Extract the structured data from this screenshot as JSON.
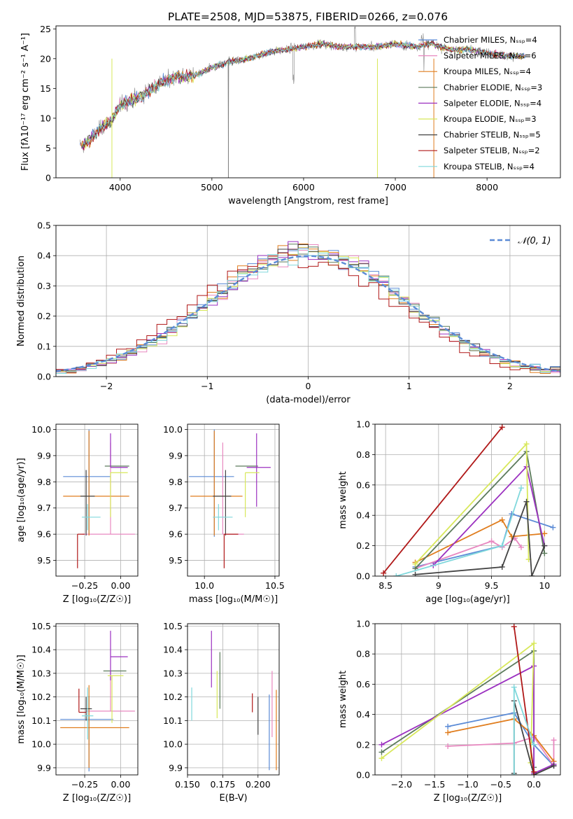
{
  "chart_data": [
    {
      "id": "spectrum",
      "type": "line",
      "title": "PLATE=2508, MJD=53875, FIBERID=0266, z=0.076",
      "xlabel": "wavelength [Angstrom, rest frame]",
      "ylabel": "Flux [fλ10⁻¹⁷ erg cm⁻² s⁻¹ A⁻¹]",
      "xlim": [
        3300,
        8800
      ],
      "ylim": [
        0,
        25.5
      ],
      "xticks": [
        4000,
        5000,
        6000,
        7000,
        8000
      ],
      "yticks": [
        0,
        5,
        10,
        15,
        20,
        25
      ],
      "legend_position": "upper-right",
      "series": [
        {
          "name": "Chabrier MILES, Nₛₛₚ=4",
          "color": "#5b8bd6"
        },
        {
          "name": "Salpeter MILES, Nₛₛₚ=6",
          "color": "#e888c0"
        },
        {
          "name": "Kroupa MILES, Nₛₛₚ=4",
          "color": "#e07d1e"
        },
        {
          "name": "Chabrier ELODIE, Nₛₛₚ=3",
          "color": "#5b7a5b"
        },
        {
          "name": "Salpeter ELODIE, Nₛₛₚ=4",
          "color": "#9b30c0"
        },
        {
          "name": "Kroupa ELODIE, Nₛₛₚ=3",
          "color": "#d8e85a"
        },
        {
          "name": "Chabrier STELIB, Nₛₛₚ=5",
          "color": "#444444"
        },
        {
          "name": "Salpeter STELIB, Nₛₛₚ=2",
          "color": "#b01818"
        },
        {
          "name": "Kroupa STELIB, Nₛₛₚ=4",
          "color": "#80d8dc"
        }
      ],
      "data_color": "#808080",
      "continuum": {
        "x": [
          3600,
          3700,
          3800,
          3900,
          4000,
          4200,
          4400,
          4600,
          4800,
          5000,
          5200,
          5400,
          5600,
          5800,
          6000,
          6200,
          6400,
          6600,
          6800,
          7000,
          7200,
          7400,
          7600,
          7800,
          8000,
          8200,
          8400
        ],
        "y": [
          5.5,
          6.8,
          8.5,
          9.5,
          12.2,
          13.5,
          15.5,
          17.0,
          17.0,
          18.5,
          19.5,
          20.0,
          21.0,
          21.5,
          22.0,
          22.5,
          22.0,
          22.0,
          22.0,
          22.5,
          22.0,
          22.5,
          21.5,
          21.5,
          21.0,
          20.5,
          20.5
        ]
      }
    },
    {
      "id": "residuals",
      "type": "step",
      "xlabel": "(data-model)/error",
      "ylabel": "Normed distribution",
      "xlim": [
        -2.5,
        2.5
      ],
      "ylim": [
        0,
        0.5
      ],
      "xticks": [
        -2,
        -1,
        0,
        1,
        2
      ],
      "yticks": [
        0.0,
        0.1,
        0.2,
        0.3,
        0.4,
        0.5
      ],
      "grid": true,
      "legend_label": "𝒩(0, 1)",
      "legend_position": "upper-right",
      "gaussian_color": "#5b8bd6",
      "bin_width": 0.1
    },
    {
      "id": "age-vs-z",
      "type": "scatter",
      "xlabel": "Z [log₁₀(Z/Z☉)]",
      "ylabel": "age  [log₁₀(age/yr)]",
      "xlim": [
        -0.45,
        0.12
      ],
      "ylim": [
        9.44,
        10.02
      ],
      "xticks": [
        -0.25,
        0.0
      ],
      "xticklabels": [
        "−0.25",
        "0.00"
      ],
      "yticks": [
        9.5,
        9.6,
        9.7,
        9.8,
        9.9,
        10.0
      ],
      "grid": true,
      "points": [
        {
          "x": -0.22,
          "y": 9.82,
          "xerr": [
            0.18,
            0.15
          ],
          "yerr": [
            0.22,
            0.18
          ],
          "color": "#5b8bd6"
        },
        {
          "x": -0.07,
          "y": 9.6,
          "xerr": [
            0.2,
            0.17
          ],
          "yerr": [
            0.0,
            0.35
          ],
          "color": "#e888c0"
        },
        {
          "x": -0.22,
          "y": 9.745,
          "xerr": [
            0.18,
            0.28
          ],
          "yerr": [
            0.15,
            0.25
          ],
          "color": "#e07d1e"
        },
        {
          "x": -0.03,
          "y": 9.86,
          "xerr": [
            0.08,
            0.09
          ],
          "yerr": [
            0.0,
            0.0
          ],
          "color": "#5b7a5b"
        },
        {
          "x": -0.07,
          "y": 9.855,
          "xerr": [
            0.0,
            0.12
          ],
          "yerr": [
            0.0,
            0.13
          ],
          "color": "#9b30c0"
        },
        {
          "x": -0.07,
          "y": 9.835,
          "xerr": [
            0.0,
            0.12
          ],
          "yerr": [
            0.17,
            0.0
          ],
          "color": "#d8e85a"
        },
        {
          "x": -0.24,
          "y": 9.745,
          "xerr": [
            0.04,
            0.06
          ],
          "yerr": [
            0.15,
            0.1
          ],
          "color": "#444444"
        },
        {
          "x": -0.3,
          "y": 9.6,
          "xerr": [
            0.0,
            0.05
          ],
          "yerr": [
            0.13,
            0.0
          ],
          "color": "#b01818"
        },
        {
          "x": -0.23,
          "y": 9.665,
          "xerr": [
            0.04,
            0.09
          ],
          "yerr": [
            0.05,
            0.05
          ],
          "color": "#80d8dc"
        }
      ]
    },
    {
      "id": "age-vs-mass",
      "type": "scatter",
      "xlabel": "mass [log₁₀(M/M☉)]",
      "ylabel": "",
      "xlim": [
        9.88,
        10.53
      ],
      "ylim": [
        9.44,
        10.02
      ],
      "xticks": [
        10.0,
        10.5
      ],
      "xticklabels": [
        "10.0",
        "10.5"
      ],
      "yticks": [
        9.5,
        9.6,
        9.7,
        9.8,
        9.9,
        10.0
      ],
      "grid": true,
      "points": [
        {
          "x": 10.07,
          "y": 9.82,
          "xerr": [
            0.18,
            0.14
          ],
          "yerr": [
            0.23,
            0.18
          ],
          "color": "#5b8bd6"
        },
        {
          "x": 10.13,
          "y": 9.6,
          "xerr": [
            0.0,
            0.15
          ],
          "yerr": [
            0.0,
            0.35
          ],
          "color": "#e888c0"
        },
        {
          "x": 10.07,
          "y": 9.745,
          "xerr": [
            0.17,
            0.2
          ],
          "yerr": [
            0.15,
            0.25
          ],
          "color": "#e07d1e"
        },
        {
          "x": 10.3,
          "y": 9.86,
          "xerr": [
            0.08,
            0.08
          ],
          "yerr": [
            0.0,
            0.0
          ],
          "color": "#5b7a5b"
        },
        {
          "x": 10.37,
          "y": 9.855,
          "xerr": [
            0.07,
            0.1
          ],
          "yerr": [
            0.15,
            0.13
          ],
          "color": "#9b30c0"
        },
        {
          "x": 10.29,
          "y": 9.835,
          "xerr": [
            0.0,
            0.1
          ],
          "yerr": [
            0.17,
            0.0
          ],
          "color": "#d8e85a"
        },
        {
          "x": 10.15,
          "y": 9.745,
          "xerr": [
            0.09,
            0.04
          ],
          "yerr": [
            0.15,
            0.1
          ],
          "color": "#444444"
        },
        {
          "x": 10.14,
          "y": 9.6,
          "xerr": [
            0.0,
            0.1
          ],
          "yerr": [
            0.13,
            0.0
          ],
          "color": "#b01818"
        },
        {
          "x": 10.1,
          "y": 9.665,
          "xerr": [
            0.04,
            0.1
          ],
          "yerr": [
            0.05,
            0.05
          ],
          "color": "#80d8dc"
        }
      ]
    },
    {
      "id": "mass-weight-vs-age",
      "type": "line",
      "xlabel": "age  [log₁₀(age/yr)]",
      "ylabel": "mass weight",
      "xlim": [
        8.4,
        10.15
      ],
      "ylim": [
        0,
        1.0
      ],
      "xticks": [
        8.5,
        9.0,
        9.5,
        10.0
      ],
      "yticks": [
        0.0,
        0.2,
        0.4,
        0.6,
        0.8,
        1.0
      ],
      "grid": true,
      "series": [
        {
          "color": "#5b8bd6",
          "x": [
            8.78,
            9.6,
            9.69,
            10.08
          ],
          "y": [
            0.06,
            0.2,
            0.41,
            0.32
          ]
        },
        {
          "color": "#e888c0",
          "x": [
            8.78,
            9.5,
            9.6,
            9.72,
            9.78
          ],
          "y": [
            0.05,
            0.23,
            0.19,
            0.25,
            0.19
          ]
        },
        {
          "color": "#e07d1e",
          "x": [
            8.78,
            9.6,
            9.69,
            10.0
          ],
          "y": [
            0.09,
            0.37,
            0.26,
            0.28
          ]
        },
        {
          "color": "#5b7a5b",
          "x": [
            8.78,
            9.83,
            10.0
          ],
          "y": [
            0.05,
            0.82,
            0.15
          ]
        },
        {
          "color": "#9b30c0",
          "x": [
            8.95,
            9.83,
            10.0
          ],
          "y": [
            0.07,
            0.72,
            0.2
          ]
        },
        {
          "color": "#d8e85a",
          "x": [
            8.78,
            9.83,
            9.85
          ],
          "y": [
            0.08,
            0.87,
            0.11
          ]
        },
        {
          "color": "#444444",
          "x": [
            8.78,
            9.6,
            9.83,
            9.88,
            10.0
          ],
          "y": [
            0.01,
            0.06,
            0.49,
            0.0,
            0.2
          ]
        },
        {
          "color": "#b01818",
          "x": [
            8.48,
            9.6
          ],
          "y": [
            0.02,
            0.98
          ]
        },
        {
          "color": "#80d8dc",
          "x": [
            8.6,
            9.6,
            9.78
          ],
          "y": [
            0.0,
            0.2,
            0.58
          ]
        }
      ]
    },
    {
      "id": "mass-vs-z",
      "type": "scatter",
      "xlabel": "Z [log₁₀(Z/Z☉)]",
      "ylabel": "mass [log₁₀(M/M☉)]",
      "xlim": [
        -0.45,
        0.12
      ],
      "ylim": [
        9.87,
        10.51
      ],
      "xticks": [
        -0.25,
        0.0
      ],
      "xticklabels": [
        "−0.25",
        "0.00"
      ],
      "yticks": [
        9.9,
        10.0,
        10.1,
        10.2,
        10.3,
        10.4,
        10.5
      ],
      "grid": true,
      "points": [
        {
          "x": -0.22,
          "y": 10.105,
          "xerr": [
            0.2,
            0.17
          ],
          "yerr": [
            0.22,
            0.1
          ],
          "color": "#5b8bd6"
        },
        {
          "x": -0.07,
          "y": 10.14,
          "xerr": [
            0.17,
            0.17
          ],
          "yerr": [
            0.0,
            0.17
          ],
          "color": "#e888c0"
        },
        {
          "x": -0.22,
          "y": 10.07,
          "xerr": [
            0.2,
            0.28
          ],
          "yerr": [
            0.17,
            0.18
          ],
          "color": "#e07d1e"
        },
        {
          "x": -0.04,
          "y": 10.31,
          "xerr": [
            0.08,
            0.08
          ],
          "yerr": [
            0.0,
            0.0
          ],
          "color": "#5b7a5b"
        },
        {
          "x": -0.07,
          "y": 10.37,
          "xerr": [
            0.0,
            0.12
          ],
          "yerr": [
            0.1,
            0.11
          ],
          "color": "#9b30c0"
        },
        {
          "x": -0.06,
          "y": 10.29,
          "xerr": [
            0.03,
            0.08
          ],
          "yerr": [
            0.2,
            0.0
          ],
          "color": "#d8e85a"
        },
        {
          "x": -0.24,
          "y": 10.15,
          "xerr": [
            0.04,
            0.04
          ],
          "yerr": [
            0.05,
            0.05
          ],
          "color": "#444444"
        },
        {
          "x": -0.29,
          "y": 10.135,
          "xerr": [
            0.0,
            0.05
          ],
          "yerr": [
            0.0,
            0.1
          ],
          "color": "#b01818"
        },
        {
          "x": -0.23,
          "y": 10.12,
          "xerr": [
            0.04,
            0.04
          ],
          "yerr": [
            0.1,
            0.12
          ],
          "color": "#80d8dc"
        }
      ]
    },
    {
      "id": "mass-vs-ebv",
      "type": "errorbar",
      "xlabel": "E(B-V)",
      "ylabel": "",
      "xlim": [
        0.15,
        0.215
      ],
      "ylim": [
        9.87,
        10.51
      ],
      "xticks": [
        0.15,
        0.175,
        0.2
      ],
      "xticklabels": [
        "0.150",
        "0.175",
        "0.200"
      ],
      "yticks": [
        9.9,
        10.0,
        10.1,
        10.2,
        10.3,
        10.4,
        10.5
      ],
      "grid": true,
      "points": [
        {
          "x": 0.208,
          "y": 10.05,
          "yerr": [
            0.16,
            0.16
          ],
          "color": "#5b8bd6"
        },
        {
          "x": 0.21,
          "y": 10.17,
          "yerr": [
            0.14,
            0.14
          ],
          "color": "#e888c0"
        },
        {
          "x": 0.213,
          "y": 10.06,
          "yerr": [
            0.17,
            0.17
          ],
          "color": "#e07d1e"
        },
        {
          "x": 0.173,
          "y": 10.27,
          "yerr": [
            0.12,
            0.12
          ],
          "color": "#5b7a5b"
        },
        {
          "x": 0.167,
          "y": 10.36,
          "yerr": [
            0.12,
            0.12
          ],
          "color": "#9b30c0"
        },
        {
          "x": 0.171,
          "y": 10.21,
          "yerr": [
            0.1,
            0.1
          ],
          "color": "#d8e85a"
        },
        {
          "x": 0.2,
          "y": 10.12,
          "yerr": [
            0.08,
            0.08
          ],
          "color": "#444444"
        },
        {
          "x": 0.196,
          "y": 10.175,
          "yerr": [
            0.04,
            0.04
          ],
          "color": "#b01818"
        },
        {
          "x": 0.153,
          "y": 10.17,
          "yerr": [
            0.07,
            0.07
          ],
          "color": "#80d8dc"
        }
      ]
    },
    {
      "id": "mass-weight-vs-z",
      "type": "line",
      "xlabel": "Z [log₁₀(Z/Z☉)]",
      "ylabel": "mass weight",
      "xlim": [
        -2.4,
        0.4
      ],
      "ylim": [
        0,
        1.0
      ],
      "xticks": [
        -2.0,
        -1.5,
        -1.0,
        -0.5,
        0.0
      ],
      "xticklabels": [
        "−2.0",
        "−1.5",
        "−1.0",
        "−0.5",
        "0.0"
      ],
      "yticks": [
        0.0,
        0.2,
        0.4,
        0.6,
        0.8,
        1.0
      ],
      "grid": true,
      "series": [
        {
          "color": "#5b8bd6",
          "x": [
            -1.3,
            -0.3,
            0.0,
            0.3
          ],
          "y": [
            0.32,
            0.41,
            0.2,
            0.06
          ]
        },
        {
          "color": "#e888c0",
          "x": [
            -1.3,
            -0.3,
            0.0,
            0.3,
            0.3
          ],
          "y": [
            0.19,
            0.21,
            0.25,
            0.06,
            0.23
          ]
        },
        {
          "color": "#e07d1e",
          "x": [
            -1.3,
            -0.3,
            0.0,
            0.3
          ],
          "y": [
            0.28,
            0.37,
            0.26,
            0.09
          ]
        },
        {
          "color": "#5b7a5b",
          "x": [
            -2.3,
            0.0,
            0.0
          ],
          "y": [
            0.15,
            0.82,
            0.05
          ]
        },
        {
          "color": "#9b30c0",
          "x": [
            -2.3,
            0.0,
            0.0,
            0.3
          ],
          "y": [
            0.2,
            0.72,
            0.01,
            0.07
          ]
        },
        {
          "color": "#d8e85a",
          "x": [
            -2.3,
            0.0,
            -0.05
          ],
          "y": [
            0.11,
            0.87,
            0.08
          ]
        },
        {
          "color": "#444444",
          "x": [
            -0.3,
            -0.3,
            0.0,
            0.3
          ],
          "y": [
            0.01,
            0.49,
            0.0,
            0.06
          ]
        },
        {
          "color": "#b01818",
          "x": [
            -0.3,
            0.0
          ],
          "y": [
            0.98,
            0.02
          ]
        },
        {
          "color": "#80d8dc",
          "x": [
            -0.3,
            -0.3,
            0.0
          ],
          "y": [
            0.0,
            0.58,
            0.2
          ]
        }
      ]
    }
  ]
}
